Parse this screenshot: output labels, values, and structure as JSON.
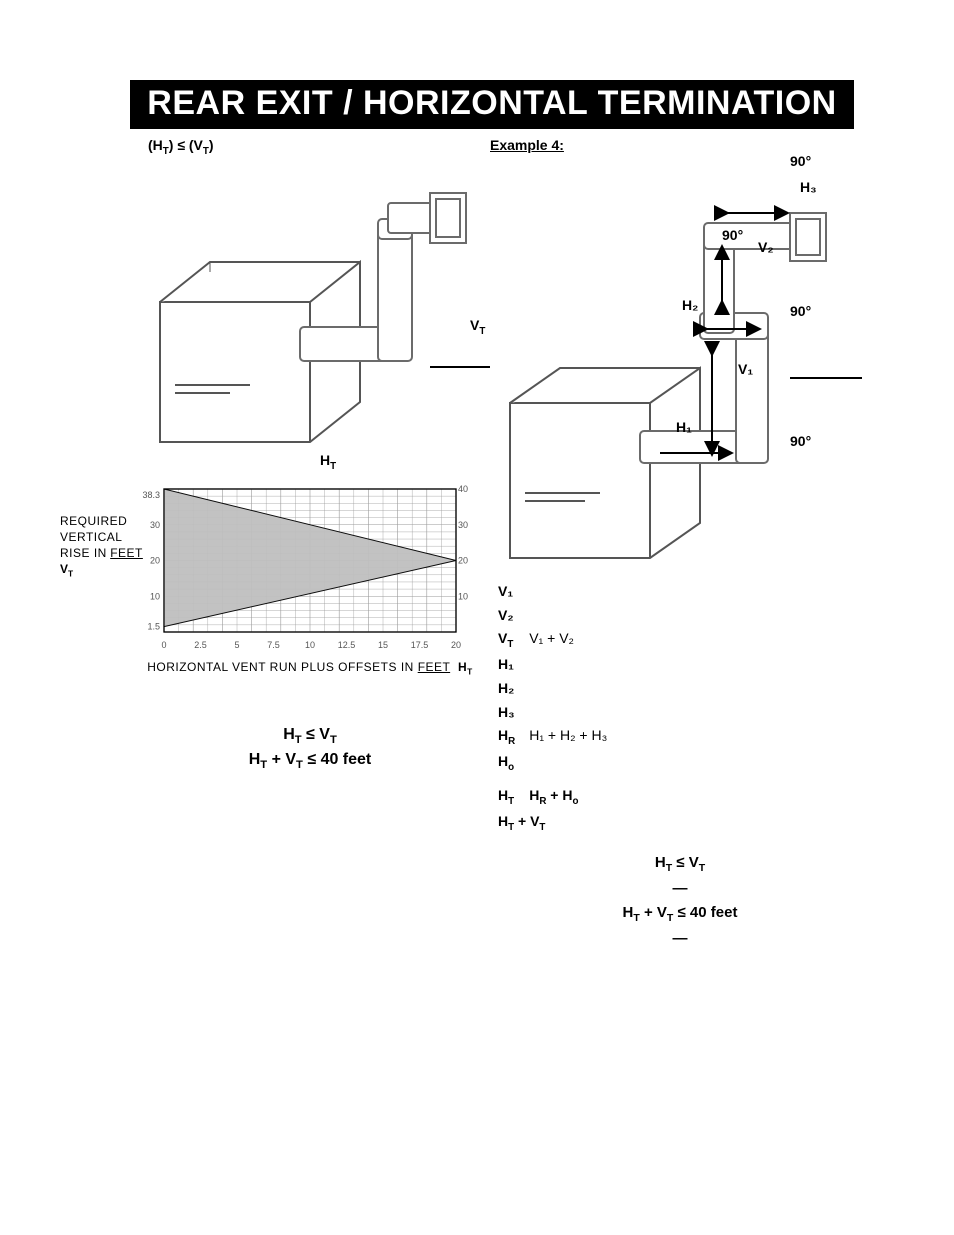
{
  "banner": "REAR EXIT / HORIZONTAL TERMINATION",
  "left": {
    "subhead_html": "(H<sub>T</sub>) ≤ (V<sub>T</sub>)",
    "vt_label_html": "V<sub>T</sub>",
    "ht_label_html": "H<sub>T</sub>",
    "chart": {
      "y_axis_title": "REQUIRED VERTICAL RISE IN",
      "y_axis_unit": "FEET",
      "y_axis_symbol_html": "V<sub>T</sub>",
      "x_axis_title": "HORIZONTAL VENT RUN PLUS OFFSETS IN",
      "x_axis_unit": "FEET",
      "x_axis_symbol_html": "H<sub>T</sub>",
      "x_ticks": [
        "0",
        "2.5",
        "5",
        "7.5",
        "10",
        "12.5",
        "15",
        "17.5",
        "20"
      ],
      "y_ticks_left": [
        "1.5",
        "10",
        "20",
        "30",
        "38.3"
      ],
      "y_ticks_right": [
        "",
        "10",
        "20",
        "30",
        "40"
      ],
      "triangle_points": [
        [
          0,
          40
        ],
        [
          0,
          1.5
        ],
        [
          20,
          20
        ]
      ],
      "grid_color": "#9a9a9a",
      "fill_color": "#bfbfbf",
      "bg": "#ffffff",
      "stroke": "#000000"
    },
    "formula_lines": [
      "H<sub>T</sub> ≤ V<sub>T</sub>",
      "H<sub>T</sub> + V<sub>T</sub> ≤ 40 feet"
    ]
  },
  "right": {
    "subhead": "Example 4:",
    "angles": [
      "90°",
      "90°",
      "90°",
      "90°"
    ],
    "seg_labels": [
      "H₃",
      "V₂",
      "H₂",
      "V₁",
      "H₁"
    ],
    "calc": {
      "V1": "V₁",
      "V2": "V₂",
      "VT_html": "V<sub>T</sub>",
      "VT_expr": "V₁ + V₂",
      "H1": "H₁",
      "H2": "H₂",
      "H3": "H₃",
      "HR_html": "H<sub>R</sub>",
      "HR_expr": "H₁ + H₂ + H₃",
      "Ho_html": "H<sub>o</sub>",
      "HT_html": "H<sub>T</sub>",
      "HT_expr_html": "H<sub>R</sub> + H<sub>o</sub>",
      "sum_html": "H<sub>T</sub> + V<sub>T</sub>"
    },
    "rules": [
      "H<sub>T</sub> ≤ V<sub>T</sub>",
      "—",
      "H<sub>T</sub> + V<sub>T</sub> ≤ 40 feet",
      "—"
    ]
  },
  "colors": {
    "banner_bg": "#000000",
    "banner_fg": "#ffffff",
    "page_bg": "#ffffff",
    "line": "#000000",
    "pipe_fill": "#ffffff",
    "pipe_stroke": "#6b6b6b",
    "box_fill": "#ffffff"
  }
}
